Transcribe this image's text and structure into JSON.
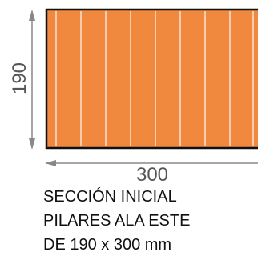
{
  "dimensions": {
    "height": "190",
    "width": "300"
  },
  "caption": [
    "SECCIÓN INICIAL",
    "PILARES ALA ESTE",
    "DE 190 x 300 mm"
  ]
}
